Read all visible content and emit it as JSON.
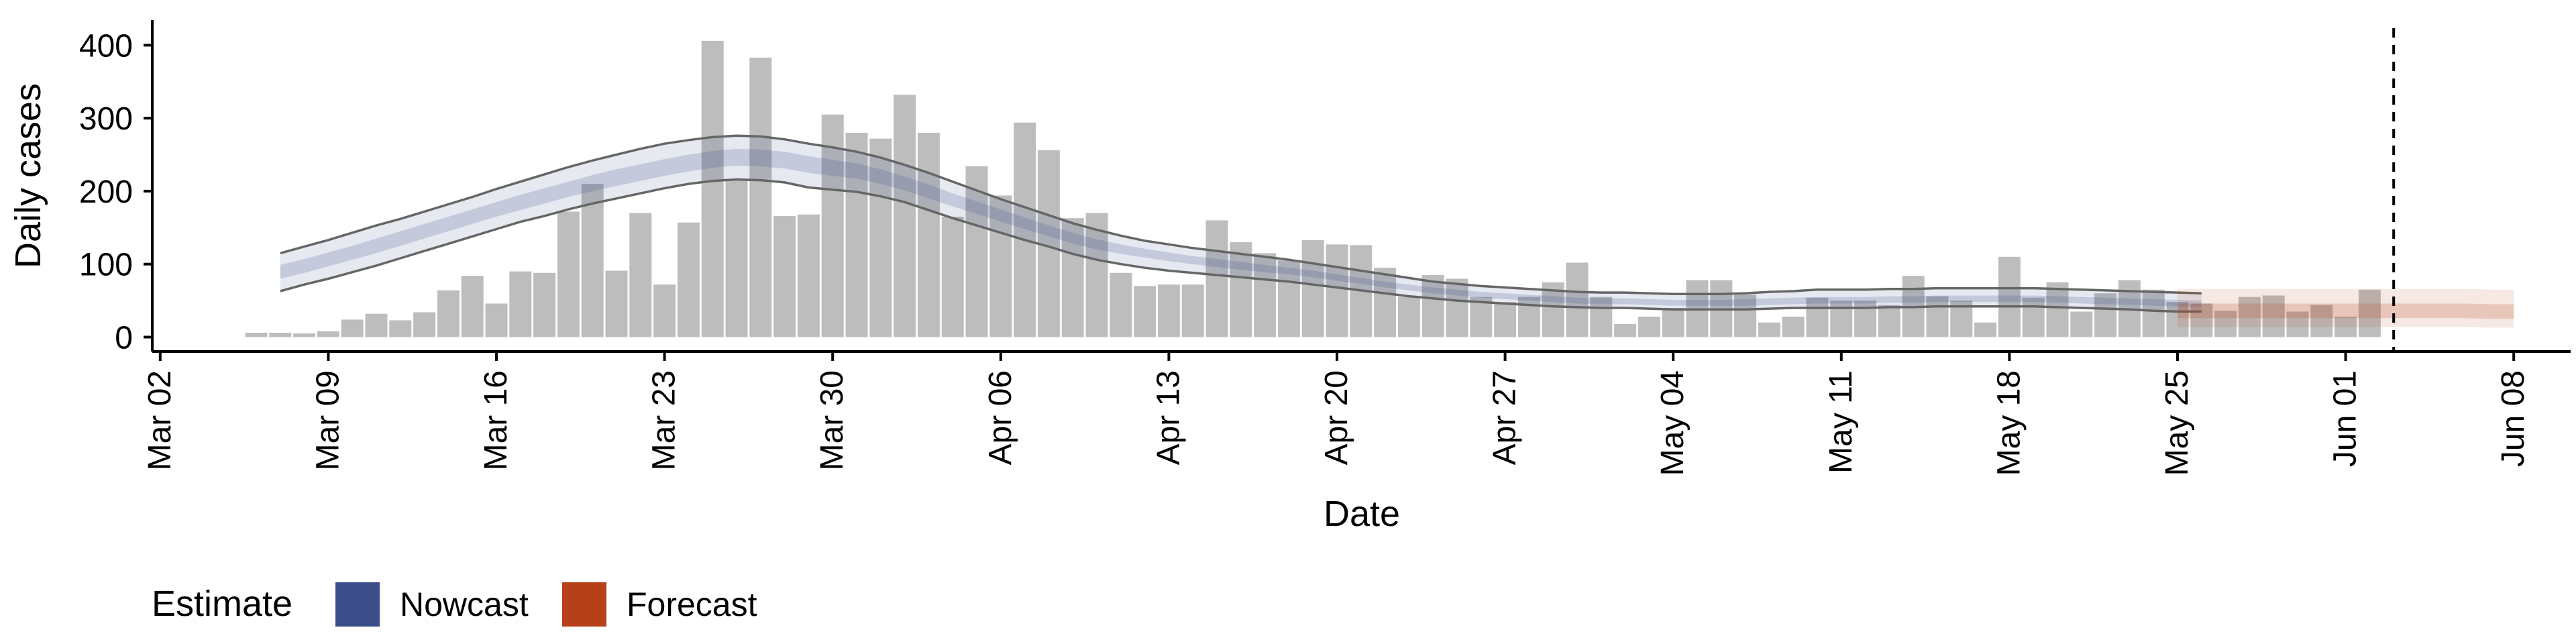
{
  "chart_data": {
    "type": "bar",
    "xlabel": "Date",
    "ylabel": "Daily cases",
    "ylim": [
      0,
      420
    ],
    "yticks": [
      0,
      100,
      200,
      300,
      400
    ],
    "xlim": [
      "2020-03-01",
      "2020-06-11"
    ],
    "xticks": [
      {
        "date": "2020-03-02",
        "label": "Mar 02"
      },
      {
        "date": "2020-03-09",
        "label": "Mar 09"
      },
      {
        "date": "2020-03-16",
        "label": "Mar 16"
      },
      {
        "date": "2020-03-23",
        "label": "Mar 23"
      },
      {
        "date": "2020-03-30",
        "label": "Mar 30"
      },
      {
        "date": "2020-04-06",
        "label": "Apr 06"
      },
      {
        "date": "2020-04-13",
        "label": "Apr 13"
      },
      {
        "date": "2020-04-20",
        "label": "Apr 20"
      },
      {
        "date": "2020-04-27",
        "label": "Apr 27"
      },
      {
        "date": "2020-05-04",
        "label": "May 04"
      },
      {
        "date": "2020-05-11",
        "label": "May 11"
      },
      {
        "date": "2020-05-18",
        "label": "May 18"
      },
      {
        "date": "2020-05-25",
        "label": "May 25"
      },
      {
        "date": "2020-06-01",
        "label": "Jun 01"
      },
      {
        "date": "2020-06-08",
        "label": "Jun 08"
      }
    ],
    "bars": {
      "start_date": "2020-03-06",
      "values": [
        6,
        6,
        5,
        8,
        24,
        32,
        23,
        34,
        64,
        84,
        46,
        90,
        88,
        172,
        210,
        91,
        170,
        72,
        157,
        406,
        215,
        383,
        166,
        168,
        305,
        280,
        272,
        332,
        280,
        165,
        234,
        194,
        294,
        256,
        163,
        170,
        88,
        70,
        72,
        72,
        160,
        130,
        115,
        105,
        133,
        127,
        126,
        95,
        55,
        85,
        80,
        55,
        48,
        55,
        75,
        102,
        55,
        18,
        28,
        40,
        78,
        78,
        58,
        20,
        28,
        54,
        50,
        50,
        44,
        84,
        56,
        50,
        20,
        110,
        54,
        75,
        35,
        60,
        78,
        65,
        48,
        46,
        36,
        55,
        57,
        35,
        44,
        28,
        65
      ]
    },
    "nowcast": {
      "start_date": "2020-03-07",
      "lower": [
        63,
        72,
        80,
        89,
        98,
        108,
        118,
        128,
        138,
        148,
        158,
        166,
        175,
        183,
        190,
        197,
        204,
        210,
        214,
        216,
        215,
        212,
        205,
        202,
        199,
        193,
        185,
        174,
        163,
        153,
        143,
        133,
        124,
        114,
        106,
        100,
        95,
        91,
        88,
        85,
        82,
        79,
        76,
        72,
        68,
        64,
        60,
        56,
        53,
        50,
        48,
        46,
        44,
        42,
        41,
        40,
        40,
        39,
        38,
        38,
        38,
        38,
        39,
        40,
        40,
        40,
        40,
        41,
        41,
        42,
        42,
        42,
        42,
        42,
        41,
        40,
        39,
        38,
        36,
        35,
        35
      ],
      "inner_lower": [
        80,
        88,
        97,
        106,
        115,
        125,
        135,
        145,
        155,
        165,
        174,
        183,
        192,
        200,
        207,
        214,
        221,
        227,
        232,
        235,
        234,
        231,
        225,
        221,
        217,
        210,
        201,
        190,
        179,
        169,
        158,
        148,
        138,
        128,
        120,
        114,
        109,
        104,
        100,
        96,
        92,
        89,
        86,
        82,
        77,
        73,
        68,
        64,
        60,
        57,
        54,
        52,
        50,
        48,
        46,
        45,
        45,
        44,
        43,
        43,
        43,
        43,
        44,
        45,
        46,
        46,
        46,
        47,
        47,
        48,
        48,
        48,
        48,
        48,
        47,
        46,
        45,
        44,
        43,
        42,
        41
      ],
      "inner_upper": [
        99,
        107,
        116,
        125,
        135,
        145,
        155,
        165,
        175,
        185,
        195,
        204,
        213,
        222,
        230,
        237,
        244,
        250,
        255,
        258,
        257,
        254,
        248,
        243,
        238,
        230,
        220,
        209,
        197,
        186,
        175,
        164,
        153,
        143,
        134,
        127,
        121,
        116,
        111,
        107,
        103,
        99,
        95,
        91,
        86,
        81,
        76,
        72,
        68,
        65,
        62,
        60,
        58,
        56,
        54,
        53,
        53,
        52,
        51,
        51,
        51,
        52,
        53,
        54,
        55,
        55,
        55,
        56,
        56,
        57,
        57,
        57,
        57,
        57,
        56,
        55,
        54,
        53,
        52,
        51,
        50
      ],
      "upper": [
        115,
        124,
        133,
        143,
        153,
        162,
        172,
        182,
        192,
        203,
        213,
        223,
        233,
        242,
        250,
        258,
        265,
        270,
        274,
        276,
        275,
        271,
        265,
        260,
        254,
        246,
        236,
        225,
        213,
        201,
        189,
        178,
        167,
        156,
        147,
        139,
        132,
        127,
        122,
        118,
        114,
        110,
        106,
        101,
        96,
        91,
        86,
        81,
        76,
        73,
        70,
        68,
        66,
        64,
        62,
        61,
        61,
        60,
        59,
        59,
        59,
        60,
        62,
        63,
        65,
        65,
        65,
        66,
        66,
        67,
        67,
        67,
        67,
        67,
        66,
        65,
        64,
        63,
        62,
        61,
        60
      ]
    },
    "forecast": {
      "start_date": "2020-05-25",
      "lower": [
        14,
        14,
        14,
        14,
        14,
        14,
        14,
        14,
        14,
        14,
        14,
        14,
        14,
        13,
        13
      ],
      "inner_lower": [
        26,
        26,
        26,
        26,
        26,
        26,
        26,
        26,
        26,
        26,
        26,
        26,
        26,
        25,
        25
      ],
      "inner_upper": [
        46,
        46,
        46,
        46,
        46,
        46,
        46,
        46,
        46,
        46,
        46,
        46,
        46,
        45,
        45
      ],
      "upper": [
        66,
        66,
        66,
        66,
        66,
        66,
        66,
        66,
        66,
        66,
        66,
        66,
        66,
        65,
        65
      ]
    },
    "vline_date": "2020-06-03",
    "legend": {
      "title": "Estimate",
      "position": "bottom-left",
      "items": [
        {
          "label": "Nowcast",
          "color": "#3c4e8a"
        },
        {
          "label": "Forecast",
          "color": "#b5401a"
        }
      ]
    },
    "colors": {
      "bar": "#bdbdbd",
      "nowcast_band": "#3c4e8a",
      "forecast_band": "#b5401a",
      "outline": "#666666"
    }
  }
}
